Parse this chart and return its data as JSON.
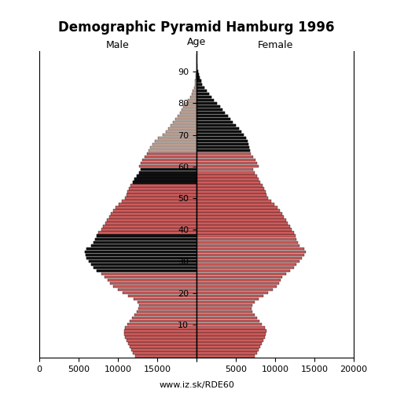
{
  "title": "Demographic Pyramid Hamburg 1996",
  "label_male": "Male",
  "label_female": "Female",
  "label_age": "Age",
  "footer": "www.iz.sk/RDE60",
  "xlim": 20000,
  "color_young_male": "#cd5c5c",
  "color_young_female": "#cd5c5c",
  "color_old_male": "#c8a89a",
  "color_old_female": "#c8a89a",
  "color_black": "#111111",
  "age_threshold_old": 65,
  "ages": [
    0,
    1,
    2,
    3,
    4,
    5,
    6,
    7,
    8,
    9,
    10,
    11,
    12,
    13,
    14,
    15,
    16,
    17,
    18,
    19,
    20,
    21,
    22,
    23,
    24,
    25,
    26,
    27,
    28,
    29,
    30,
    31,
    32,
    33,
    34,
    35,
    36,
    37,
    38,
    39,
    40,
    41,
    42,
    43,
    44,
    45,
    46,
    47,
    48,
    49,
    50,
    51,
    52,
    53,
    54,
    55,
    56,
    57,
    58,
    59,
    60,
    61,
    62,
    63,
    64,
    65,
    66,
    67,
    68,
    69,
    70,
    71,
    72,
    73,
    74,
    75,
    76,
    77,
    78,
    79,
    80,
    81,
    82,
    83,
    84,
    85,
    86,
    87,
    88,
    89,
    90,
    91,
    92,
    93,
    94,
    95
  ],
  "male": [
    7800,
    8100,
    8300,
    8500,
    8700,
    8900,
    9100,
    9200,
    9200,
    9100,
    8800,
    8500,
    8200,
    7900,
    7600,
    7400,
    7300,
    7500,
    8000,
    8700,
    9400,
    10000,
    10600,
    11000,
    11300,
    11700,
    12100,
    12700,
    13100,
    13400,
    13700,
    14000,
    14100,
    14200,
    14000,
    13400,
    13100,
    12900,
    12700,
    12500,
    12100,
    11900,
    11600,
    11400,
    11100,
    10900,
    10600,
    10300,
    9900,
    9500,
    9100,
    8900,
    8800,
    8600,
    8400,
    8100,
    7900,
    7600,
    7300,
    7100,
    7300,
    7100,
    6900,
    6600,
    6300,
    6100,
    5900,
    5600,
    5300,
    4900,
    4300,
    3900,
    3600,
    3300,
    3000,
    2700,
    2400,
    2100,
    1900,
    1700,
    1400,
    1100,
    850,
    650,
    480,
    330,
    220,
    160,
    110,
    75,
    50,
    32,
    22,
    13,
    8,
    4
  ],
  "female": [
    7400,
    7700,
    7900,
    8100,
    8300,
    8500,
    8700,
    8800,
    8900,
    8700,
    8300,
    8000,
    7700,
    7400,
    7100,
    7000,
    7100,
    7400,
    7900,
    8500,
    9100,
    9700,
    10200,
    10500,
    10700,
    10900,
    11400,
    11900,
    12400,
    12700,
    13100,
    13400,
    13700,
    13900,
    13700,
    13100,
    12900,
    12700,
    12600,
    12400,
    12100,
    11900,
    11600,
    11400,
    11100,
    10900,
    10600,
    10300,
    9900,
    9500,
    9100,
    8900,
    8800,
    8600,
    8400,
    8100,
    7900,
    7700,
    7400,
    7200,
    7900,
    7700,
    7500,
    7200,
    6900,
    6800,
    6700,
    6600,
    6500,
    6300,
    6000,
    5700,
    5400,
    5000,
    4600,
    4300,
    4000,
    3600,
    3300,
    3000,
    2600,
    2200,
    1850,
    1550,
    1250,
    950,
    720,
    550,
    390,
    270,
    180,
    115,
    72,
    45,
    25,
    13
  ],
  "male_black": [
    27,
    28,
    29,
    30,
    31,
    32,
    33,
    34,
    35,
    36,
    37,
    38,
    55,
    56,
    57,
    58,
    59
  ],
  "female_black": [
    65,
    66,
    67,
    68,
    69,
    70,
    71,
    72,
    73,
    74,
    75,
    76,
    77,
    78,
    79,
    80,
    81,
    82,
    83,
    84,
    85,
    86,
    87,
    88,
    89,
    90
  ],
  "yticks": [
    10,
    20,
    30,
    40,
    50,
    60,
    70,
    80,
    90
  ],
  "xtick_labels_left": [
    "20000",
    "15000",
    "10000",
    "5000",
    "0"
  ],
  "xtick_labels_right": [
    "0",
    "5000",
    "10000",
    "15000",
    "20000"
  ]
}
